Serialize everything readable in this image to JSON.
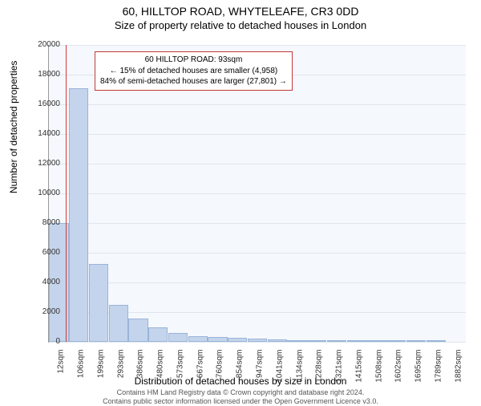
{
  "titles": {
    "main": "60, HILLTOP ROAD, WHYTELEAFE, CR3 0DD",
    "sub": "Size of property relative to detached houses in London"
  },
  "chart": {
    "type": "histogram",
    "background_color": "#f5f8fc",
    "grid_color": "#e0e6ef",
    "bar_fill": "#c4d4ec",
    "bar_border": "#9ab4d8",
    "axis_color": "#999999",
    "ylabel": "Number of detached properties",
    "xlabel": "Distribution of detached houses by size in London",
    "label_fontsize": 12,
    "tick_fontsize": 10,
    "ylim": [
      0,
      20000
    ],
    "ytick_step": 2000,
    "yticks": [
      0,
      2000,
      4000,
      6000,
      8000,
      10000,
      12000,
      14000,
      16000,
      18000,
      20000
    ],
    "xticks": [
      "12sqm",
      "106sqm",
      "199sqm",
      "293sqm",
      "386sqm",
      "480sqm",
      "573sqm",
      "667sqm",
      "760sqm",
      "854sqm",
      "947sqm",
      "1041sqm",
      "1134sqm",
      "1228sqm",
      "1321sqm",
      "1415sqm",
      "1508sqm",
      "1602sqm",
      "1695sqm",
      "1789sqm",
      "1882sqm"
    ],
    "values": [
      8000,
      17100,
      5250,
      2500,
      1550,
      950,
      600,
      400,
      350,
      280,
      220,
      160,
      130,
      100,
      80,
      60,
      55,
      40,
      30,
      25
    ],
    "marker": {
      "value_sqm": 93,
      "color": "#d43a3a"
    }
  },
  "annotation": {
    "border_color": "#c23a3a",
    "lines": [
      "60 HILLTOP ROAD: 93sqm",
      "← 15% of detached houses are smaller (4,958)",
      "84% of semi-detached houses are larger (27,801) →"
    ]
  },
  "footer": {
    "line1": "Contains HM Land Registry data © Crown copyright and database right 2024.",
    "line2": "Contains public sector information licensed under the Open Government Licence v3.0."
  }
}
